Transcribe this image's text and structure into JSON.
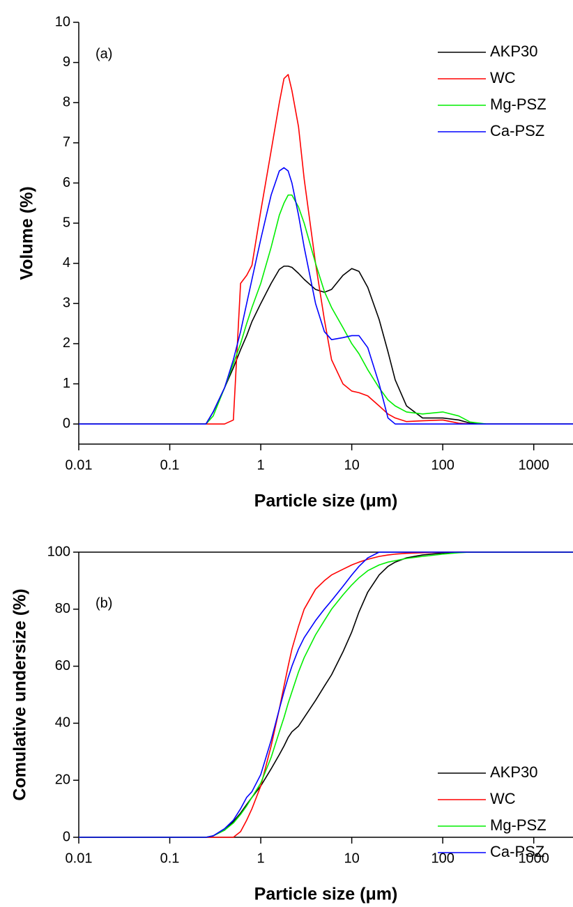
{
  "chart_data": [
    {
      "type": "line",
      "xscale": "log",
      "annotation": "(a)",
      "xlabel": "Particle size (μm)",
      "ylabel": "Volume (%)",
      "xlim": [
        0.01,
        2700
      ],
      "ylim": [
        -0.5,
        10
      ],
      "xticks": [
        0.01,
        0.1,
        1,
        10,
        100,
        1000
      ],
      "yticks": [
        0,
        1,
        2,
        3,
        4,
        5,
        6,
        7,
        8,
        9,
        10
      ],
      "legend": "upper right",
      "x": [
        0.01,
        0.1,
        0.2,
        0.25,
        0.3,
        0.4,
        0.5,
        0.6,
        0.7,
        0.8,
        1,
        1.3,
        1.6,
        1.8,
        2,
        2.2,
        2.6,
        3,
        4,
        5,
        6,
        8,
        10,
        12,
        15,
        20,
        25,
        30,
        40,
        60,
        100,
        150,
        200,
        300,
        1000,
        2700
      ],
      "series": [
        {
          "name": "AKP30",
          "color": "#000000",
          "values": [
            0,
            0,
            0,
            0,
            0.3,
            0.9,
            1.4,
            1.85,
            2.2,
            2.55,
            3.0,
            3.5,
            3.85,
            3.93,
            3.93,
            3.9,
            3.75,
            3.6,
            3.35,
            3.28,
            3.35,
            3.7,
            3.87,
            3.8,
            3.4,
            2.6,
            1.8,
            1.1,
            0.45,
            0.15,
            0.15,
            0.1,
            0.02,
            0,
            0,
            0
          ]
        },
        {
          "name": "WC",
          "color": "#ff0000",
          "values": [
            0,
            0,
            0,
            0,
            0,
            0,
            0.1,
            3.5,
            3.7,
            3.95,
            5.3,
            6.8,
            8.0,
            8.6,
            8.7,
            8.3,
            7.4,
            6.1,
            4.0,
            2.6,
            1.6,
            1.0,
            0.82,
            0.78,
            0.7,
            0.45,
            0.25,
            0.15,
            0.06,
            0.08,
            0.1,
            0.02,
            0,
            0,
            0,
            0
          ]
        },
        {
          "name": "Mg-PSZ",
          "color": "#00ee00",
          "values": [
            0,
            0,
            0,
            0,
            0.2,
            0.9,
            1.5,
            2.0,
            2.5,
            2.9,
            3.5,
            4.4,
            5.2,
            5.5,
            5.7,
            5.7,
            5.4,
            5.0,
            4.0,
            3.3,
            2.9,
            2.4,
            2.0,
            1.75,
            1.35,
            0.9,
            0.6,
            0.45,
            0.3,
            0.25,
            0.3,
            0.2,
            0.05,
            0,
            0,
            0
          ]
        },
        {
          "name": "Ca-PSZ",
          "color": "#0000ff",
          "values": [
            0,
            0,
            0,
            0,
            0.3,
            0.9,
            1.6,
            2.3,
            3.0,
            3.6,
            4.6,
            5.7,
            6.3,
            6.38,
            6.3,
            6.0,
            5.2,
            4.4,
            3.0,
            2.3,
            2.1,
            2.15,
            2.2,
            2.2,
            1.9,
            1.0,
            0.15,
            0,
            0,
            0,
            0,
            0,
            0,
            0,
            0,
            0
          ]
        }
      ]
    },
    {
      "type": "line",
      "xscale": "log",
      "annotation": "(b)",
      "xlabel": "Particle size (μm)",
      "ylabel": "Comulative undersize (%)",
      "xlim": [
        0.01,
        2700
      ],
      "ylim": [
        0,
        100
      ],
      "xticks": [
        0.01,
        0.1,
        1,
        10,
        100,
        1000
      ],
      "yticks": [
        0,
        20,
        40,
        60,
        80,
        100
      ],
      "legend": "lower right",
      "x": [
        0.01,
        0.1,
        0.2,
        0.25,
        0.3,
        0.4,
        0.5,
        0.6,
        0.7,
        0.8,
        1,
        1.3,
        1.6,
        1.8,
        2,
        2.2,
        2.6,
        3,
        4,
        5,
        6,
        8,
        10,
        12,
        15,
        20,
        25,
        30,
        40,
        60,
        100,
        150,
        200,
        300,
        1000,
        2700
      ],
      "series": [
        {
          "name": "AKP30",
          "color": "#000000",
          "values": [
            0,
            0,
            0,
            0,
            0.5,
            2.5,
            5.5,
            8.5,
            11.5,
            14,
            18,
            24,
            29,
            32,
            35,
            37,
            39,
            42,
            48,
            53,
            57,
            65,
            72,
            79,
            86,
            92,
            95,
            96.5,
            98,
            99,
            99.7,
            100,
            100,
            100,
            100,
            100
          ]
        },
        {
          "name": "WC",
          "color": "#ff0000",
          "values": [
            0,
            0,
            0,
            0,
            0,
            0,
            0,
            2,
            6,
            10,
            18,
            32,
            45,
            53,
            60,
            66,
            74,
            80,
            87,
            90,
            92,
            94,
            95.5,
            96.5,
            97.5,
            98.5,
            99,
            99.3,
            99.6,
            99.8,
            100,
            100,
            100,
            100,
            100,
            100
          ]
        },
        {
          "name": "Mg-PSZ",
          "color": "#00ee00",
          "values": [
            0,
            0,
            0,
            0,
            0.5,
            2.5,
            5,
            8,
            11,
            14,
            19,
            28,
            37,
            42,
            47,
            51,
            58,
            63,
            71,
            76,
            80,
            85,
            88.5,
            91,
            93.5,
            95.5,
            96.5,
            97,
            97.8,
            98.5,
            99.3,
            99.8,
            100,
            100,
            100,
            100
          ]
        },
        {
          "name": "Ca-PSZ",
          "color": "#0000ff",
          "values": [
            0,
            0,
            0,
            0,
            0.5,
            3,
            6,
            10,
            14,
            16,
            22,
            34,
            45,
            51,
            56,
            60,
            66,
            70,
            76,
            80,
            83,
            88,
            92,
            95,
            98,
            100,
            100,
            100,
            100,
            100,
            100,
            100,
            100,
            100,
            100,
            100
          ]
        }
      ]
    }
  ]
}
